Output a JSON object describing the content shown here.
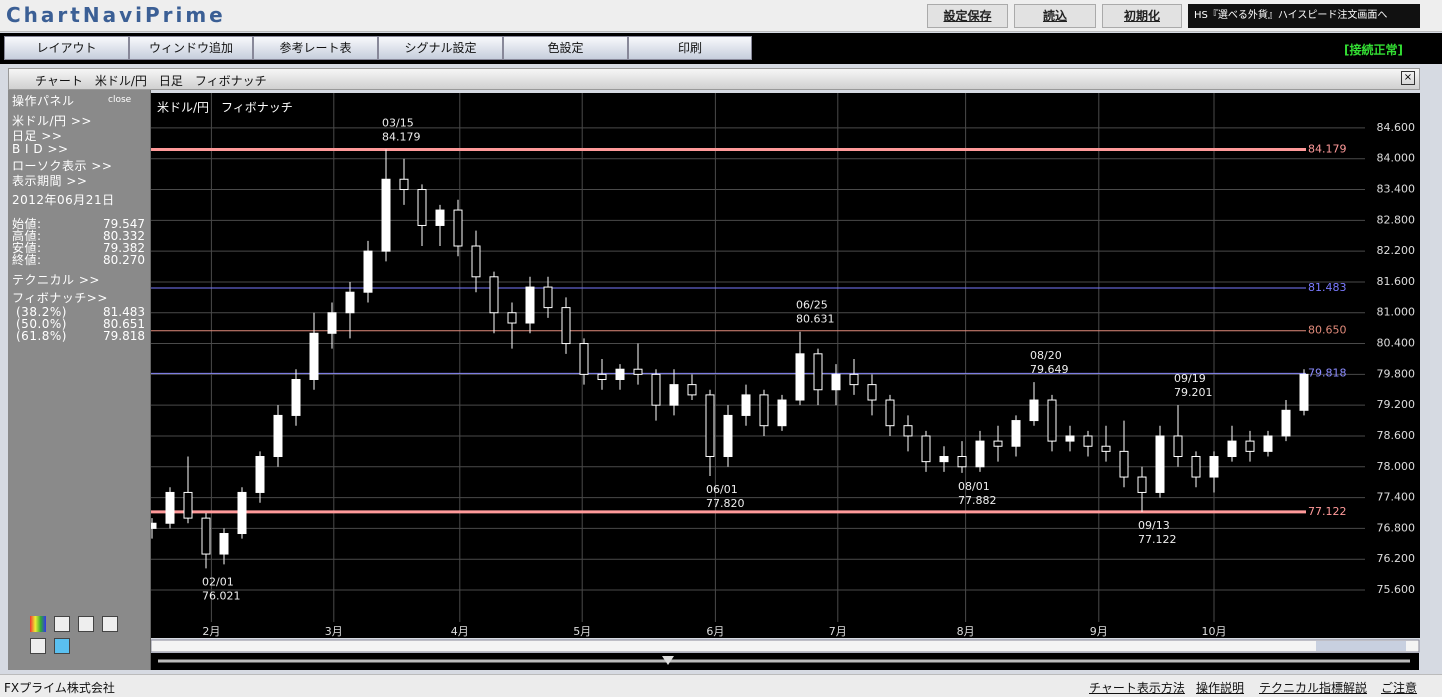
{
  "header": {
    "logo": "ChartNaviPrime",
    "buttons": [
      "設定保存",
      "読込",
      "初期化"
    ],
    "order_link": "HS『選べる外貨』ハイスピード注文画面へ"
  },
  "menu": {
    "items": [
      "レイアウト",
      "ウィンドウ追加",
      "参考レート表",
      "シグナル設定",
      "色設定",
      "印刷"
    ],
    "status": "[接続正常]"
  },
  "window": {
    "title": "チャート　米ドル/円　日足　フィボナッチ"
  },
  "panel": {
    "title": "操作パネル",
    "close": "close",
    "links": [
      "米ドル/円 >>",
      "日足 >>",
      "B I D >>",
      "ローソク表示 >>",
      "表示期間 >>"
    ],
    "date": "2012年06月21日",
    "prices": [
      [
        "始値:",
        "79.547"
      ],
      [
        "高値:",
        "80.332"
      ],
      [
        "安値:",
        "79.382"
      ],
      [
        "終値:",
        "80.270"
      ]
    ],
    "technical": "テクニカル >>",
    "fibonacci": "フィボナッチ>>",
    "fib_rows": [
      [
        "(38.2%)",
        "81.483"
      ],
      [
        "(50.0%)",
        "80.651"
      ],
      [
        "(61.8%)",
        "79.818"
      ]
    ]
  },
  "chart_data": {
    "type": "candlestick",
    "title": "米ドル/円　フィボナッチ",
    "categories": [
      null,
      null,
      null,
      null,
      null,
      null,
      null,
      null,
      null,
      null,
      null,
      null,
      null,
      null,
      null,
      null,
      null,
      null,
      null,
      null,
      null,
      null,
      null,
      null,
      null,
      null,
      null,
      null,
      null,
      null,
      null,
      null,
      null,
      null,
      null,
      null,
      null,
      null,
      null,
      null,
      null,
      null,
      null,
      null,
      null,
      null,
      null,
      null,
      null,
      null,
      null,
      null,
      null,
      null,
      null,
      null,
      null,
      null,
      null,
      null,
      null,
      null,
      null,
      null,
      null
    ],
    "ohlc": [
      [
        76.8,
        77.0,
        76.6,
        76.9
      ],
      [
        76.9,
        77.6,
        76.8,
        77.5
      ],
      [
        77.5,
        78.2,
        76.9,
        77.0
      ],
      [
        77.0,
        77.1,
        76.021,
        76.3
      ],
      [
        76.3,
        76.8,
        76.1,
        76.7
      ],
      [
        76.7,
        77.6,
        76.6,
        77.5
      ],
      [
        77.5,
        78.3,
        77.3,
        78.2
      ],
      [
        78.2,
        79.2,
        78.0,
        79.0
      ],
      [
        79.0,
        79.9,
        78.8,
        79.7
      ],
      [
        79.7,
        81.0,
        79.5,
        80.6
      ],
      [
        80.6,
        81.2,
        80.3,
        81.0
      ],
      [
        81.0,
        81.6,
        80.5,
        81.4
      ],
      [
        81.4,
        82.4,
        81.2,
        82.2
      ],
      [
        82.2,
        84.179,
        82.0,
        83.6
      ],
      [
        83.6,
        84.0,
        83.1,
        83.4
      ],
      [
        83.4,
        83.5,
        82.3,
        82.7
      ],
      [
        82.7,
        83.1,
        82.3,
        83.0
      ],
      [
        83.0,
        83.2,
        82.1,
        82.3
      ],
      [
        82.3,
        82.6,
        81.4,
        81.7
      ],
      [
        81.7,
        81.8,
        80.6,
        81.0
      ],
      [
        81.0,
        81.2,
        80.3,
        80.8
      ],
      [
        80.8,
        81.7,
        80.6,
        81.5
      ],
      [
        81.5,
        81.7,
        80.9,
        81.1
      ],
      [
        81.1,
        81.3,
        80.2,
        80.4
      ],
      [
        80.4,
        80.5,
        79.6,
        79.8
      ],
      [
        79.8,
        80.1,
        79.5,
        79.7
      ],
      [
        79.7,
        80.0,
        79.5,
        79.9
      ],
      [
        79.9,
        80.4,
        79.6,
        79.8
      ],
      [
        79.8,
        79.9,
        78.9,
        79.2
      ],
      [
        79.2,
        79.9,
        79.0,
        79.6
      ],
      [
        79.6,
        79.8,
        79.3,
        79.4
      ],
      [
        79.4,
        79.5,
        77.82,
        78.2
      ],
      [
        78.2,
        79.2,
        78.0,
        79.0
      ],
      [
        79.0,
        79.6,
        78.8,
        79.4
      ],
      [
        79.4,
        79.5,
        78.6,
        78.8
      ],
      [
        78.8,
        79.4,
        78.7,
        79.3
      ],
      [
        79.3,
        80.631,
        79.2,
        80.2
      ],
      [
        80.2,
        80.3,
        79.2,
        79.5
      ],
      [
        79.5,
        80.0,
        79.2,
        79.8
      ],
      [
        79.8,
        80.1,
        79.4,
        79.6
      ],
      [
        79.6,
        79.8,
        79.0,
        79.3
      ],
      [
        79.3,
        79.4,
        78.6,
        78.8
      ],
      [
        78.8,
        79.0,
        78.3,
        78.6
      ],
      [
        78.6,
        78.7,
        77.9,
        78.1
      ],
      [
        78.1,
        78.4,
        77.9,
        78.2
      ],
      [
        78.2,
        78.5,
        77.882,
        78.0
      ],
      [
        78.0,
        78.7,
        77.9,
        78.5
      ],
      [
        78.5,
        78.8,
        78.1,
        78.4
      ],
      [
        78.4,
        79.0,
        78.2,
        78.9
      ],
      [
        78.9,
        79.649,
        78.8,
        79.3
      ],
      [
        79.3,
        79.4,
        78.3,
        78.5
      ],
      [
        78.5,
        78.8,
        78.3,
        78.6
      ],
      [
        78.6,
        78.7,
        78.2,
        78.4
      ],
      [
        78.4,
        78.8,
        78.1,
        78.3
      ],
      [
        78.3,
        78.9,
        77.6,
        77.8
      ],
      [
        77.8,
        78.0,
        77.122,
        77.5
      ],
      [
        77.5,
        78.8,
        77.4,
        78.6
      ],
      [
        78.6,
        79.201,
        78.0,
        78.2
      ],
      [
        78.2,
        78.3,
        77.6,
        77.8
      ],
      [
        77.8,
        78.3,
        77.5,
        78.2
      ],
      [
        78.2,
        78.8,
        78.1,
        78.5
      ],
      [
        78.5,
        78.7,
        78.1,
        78.3
      ],
      [
        78.3,
        78.7,
        78.2,
        78.6
      ],
      [
        78.6,
        79.3,
        78.5,
        79.1
      ],
      [
        79.1,
        79.9,
        79.0,
        79.8
      ]
    ],
    "up_color": "#ffffff",
    "down_color": "#000000",
    "xticks": [
      {
        "value": 3.3,
        "label": "2月"
      },
      {
        "value": 10.1,
        "label": "3月"
      },
      {
        "value": 17.1,
        "label": "4月"
      },
      {
        "value": 23.9,
        "label": "5月"
      },
      {
        "value": 31.3,
        "label": "6月"
      },
      {
        "value": 38.1,
        "label": "7月"
      },
      {
        "value": 45.2,
        "label": "8月"
      },
      {
        "value": 52.6,
        "label": "9月"
      },
      {
        "value": 59,
        "label": "10月"
      }
    ],
    "ylim": [
      74.665,
      85.28
    ],
    "yticks": [
      {
        "value": 84.6,
        "label": "84.600"
      },
      {
        "value": 84,
        "label": "84.000"
      },
      {
        "value": 83.4,
        "label": "83.400"
      },
      {
        "value": 82.8,
        "label": "82.800"
      },
      {
        "value": 82.2,
        "label": "82.200"
      },
      {
        "value": 81.6,
        "label": "81.600"
      },
      {
        "value": 81,
        "label": "81.000"
      },
      {
        "value": 80.4,
        "label": "80.400"
      },
      {
        "value": 79.8,
        "label": "79.800"
      },
      {
        "value": 79.2,
        "label": "79.200"
      },
      {
        "value": 78.6,
        "label": "78.600"
      },
      {
        "value": 78,
        "label": "78.000"
      },
      {
        "value": 77.4,
        "label": "77.400"
      },
      {
        "value": 76.8,
        "label": "76.800"
      },
      {
        "value": 76.2,
        "label": "76.200"
      },
      {
        "value": 75.6,
        "label": "75.600"
      }
    ],
    "grid": true,
    "levels": {
      "values": [
        84.179,
        81.483,
        80.65,
        79.818,
        77.122
      ],
      "value_labels": [
        "84.179",
        "81.483",
        "80.650",
        "79.818",
        "77.122"
      ],
      "colors": [
        "#ff9a9a",
        "#7a7aff",
        "#e08a7a",
        "#8c8cff",
        "#ff9a9a"
      ],
      "line_widths": [
        3,
        1,
        1,
        1,
        3
      ]
    },
    "annotations": [
      {
        "date": "03/15",
        "value": 84.179
      },
      {
        "date": "02/01",
        "value": 76.021
      },
      {
        "date": "06/01",
        "value": 77.82,
        "label": "77.820"
      },
      {
        "date": "06/25",
        "value": 80.631
      },
      {
        "date": "08/01",
        "value": 77.882
      },
      {
        "date": "08/20",
        "value": 79.649
      },
      {
        "date": "09/13",
        "value": 77.122
      },
      {
        "date": "09/19",
        "value": 79.201
      }
    ]
  },
  "footer": {
    "company": "FXプライム株式会社",
    "links": [
      "チャート表示方法",
      "操作説明",
      "テクニカル指標解説",
      "ご注意"
    ]
  }
}
